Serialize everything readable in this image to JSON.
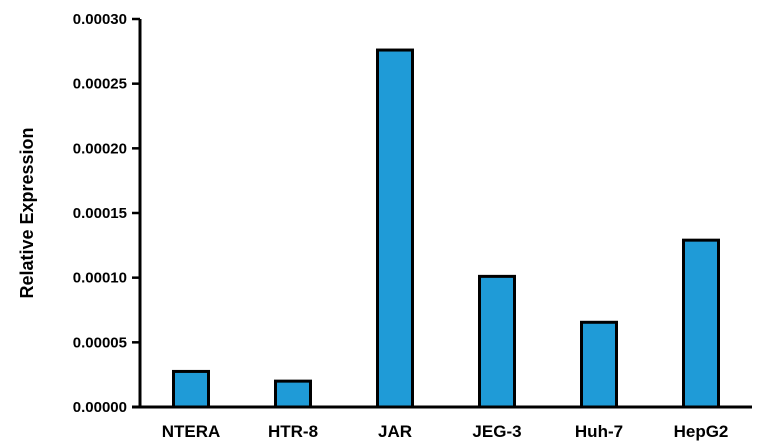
{
  "chart_data": {
    "type": "bar",
    "title": "",
    "xlabel": "",
    "ylabel": "Relative Expression",
    "categories": [
      "NTERA",
      "HTR-8",
      "JAR",
      "JEG-3",
      "Huh-7",
      "HepG2"
    ],
    "values": [
      2.75e-05,
      2e-05,
      0.000276,
      0.000101,
      6.55e-05,
      0.000129
    ],
    "ylim": [
      0,
      0.0003
    ],
    "yticks": [
      "0.00000",
      "0.00005",
      "0.00010",
      "0.00015",
      "0.00020",
      "0.00025",
      "0.00030"
    ],
    "grid": false,
    "legend": "none",
    "bar_color": "#1f9bd7",
    "bar_edge_color": "#000000"
  }
}
